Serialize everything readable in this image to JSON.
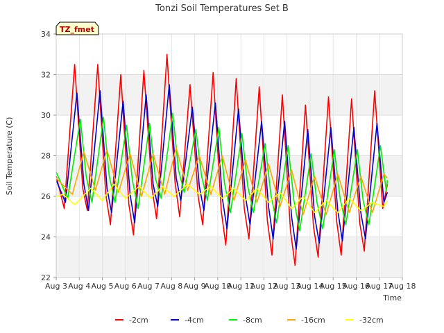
{
  "chart_data": {
    "type": "line",
    "title": "Tonzi Soil Temperatures Set B",
    "xlabel": "Time",
    "ylabel": "Soil Temperature (C)",
    "annotation": "TZ_fmet",
    "xlim": [
      3,
      18
    ],
    "ylim": [
      22,
      34
    ],
    "x_ticks": [
      3,
      4,
      5,
      6,
      7,
      8,
      9,
      10,
      11,
      12,
      13,
      14,
      15,
      16,
      17,
      18
    ],
    "x_tick_labels": [
      "Aug 3",
      "Aug 4",
      "Aug 5",
      "Aug 6",
      "Aug 7",
      "Aug 8",
      "Aug 9",
      "Aug 10",
      "Aug 11",
      "Aug 12",
      "Aug 13",
      "Aug 14",
      "Aug 15",
      "Aug 16",
      "Aug 17",
      "Aug 18"
    ],
    "y_ticks": [
      22,
      24,
      26,
      28,
      30,
      32,
      34
    ],
    "y_tick_labels": [
      "22",
      "24",
      "26",
      "28",
      "30",
      "32",
      "34"
    ],
    "grid": true,
    "legend_position": "bottom",
    "series": [
      {
        "name": "-2cm",
        "color": "#ff0000",
        "x": [
          3.0,
          3.35,
          3.8,
          4.15,
          4.35,
          4.8,
          5.15,
          5.35,
          5.8,
          6.15,
          6.35,
          6.8,
          7.15,
          7.35,
          7.8,
          8.15,
          8.35,
          8.8,
          9.15,
          9.35,
          9.8,
          10.15,
          10.35,
          10.8,
          11.15,
          11.35,
          11.8,
          12.15,
          12.35,
          12.8,
          13.15,
          13.35,
          13.8,
          14.15,
          14.35,
          14.8,
          15.15,
          15.35,
          15.8,
          16.15,
          16.35,
          16.8,
          17.15,
          17.35
        ],
        "y": [
          27.0,
          25.4,
          32.5,
          26.4,
          25.3,
          32.5,
          26.1,
          24.6,
          32.0,
          25.6,
          24.1,
          32.2,
          26.4,
          24.9,
          33.0,
          26.7,
          25.0,
          31.5,
          26.0,
          24.6,
          32.1,
          25.3,
          23.6,
          31.8,
          25.4,
          23.9,
          31.4,
          24.8,
          23.1,
          31.0,
          24.3,
          22.6,
          30.5,
          24.5,
          23.0,
          30.9,
          24.8,
          23.1,
          30.8,
          24.7,
          23.3,
          31.2,
          25.4,
          26.6
        ]
      },
      {
        "name": "-4cm",
        "color": "#0000cc",
        "x": [
          3.0,
          3.4,
          3.9,
          4.2,
          4.4,
          4.9,
          5.2,
          5.4,
          5.9,
          6.2,
          6.4,
          6.9,
          7.2,
          7.4,
          7.9,
          8.2,
          8.4,
          8.9,
          9.2,
          9.4,
          9.9,
          10.2,
          10.4,
          10.9,
          11.2,
          11.4,
          11.9,
          12.2,
          12.4,
          12.9,
          13.2,
          13.4,
          13.9,
          14.2,
          14.4,
          14.9,
          15.2,
          15.4,
          15.9,
          16.2,
          16.4,
          16.9,
          17.2,
          17.35
        ],
        "y": [
          26.8,
          25.7,
          31.1,
          26.6,
          25.3,
          31.2,
          26.4,
          25.2,
          30.7,
          26.1,
          24.7,
          31.0,
          26.6,
          25.5,
          31.5,
          26.9,
          25.8,
          30.4,
          26.5,
          25.3,
          30.6,
          25.9,
          24.4,
          30.3,
          26.0,
          24.6,
          29.7,
          25.5,
          23.9,
          29.7,
          25.0,
          23.4,
          29.3,
          25.0,
          23.7,
          29.4,
          25.3,
          23.8,
          29.4,
          25.2,
          23.9,
          29.6,
          25.7,
          26.2
        ]
      },
      {
        "name": "-8cm",
        "color": "#00ee00",
        "x": [
          3.0,
          3.5,
          4.05,
          4.3,
          4.55,
          5.05,
          5.3,
          5.55,
          6.05,
          6.3,
          6.55,
          7.05,
          7.3,
          7.55,
          8.05,
          8.3,
          8.55,
          9.05,
          9.3,
          9.55,
          10.05,
          10.3,
          10.55,
          11.05,
          11.3,
          11.55,
          12.05,
          12.3,
          12.55,
          13.05,
          13.3,
          13.55,
          14.05,
          14.3,
          14.55,
          15.05,
          15.3,
          15.55,
          16.05,
          16.3,
          16.55,
          17.05,
          17.3,
          17.35
        ],
        "y": [
          27.2,
          25.9,
          29.8,
          27.0,
          25.7,
          29.9,
          27.0,
          25.7,
          29.5,
          26.8,
          25.4,
          29.6,
          26.9,
          25.9,
          30.1,
          27.3,
          26.2,
          29.3,
          27.0,
          25.8,
          29.4,
          26.6,
          25.2,
          29.1,
          26.5,
          25.2,
          28.6,
          26.1,
          24.7,
          28.5,
          25.8,
          24.3,
          28.1,
          25.7,
          24.4,
          28.3,
          25.9,
          24.6,
          28.3,
          25.8,
          24.6,
          28.5,
          26.3,
          26.8
        ]
      },
      {
        "name": "-16cm",
        "color": "#ffa500",
        "x": [
          3.0,
          3.7,
          4.2,
          4.7,
          5.2,
          5.7,
          6.2,
          6.7,
          7.2,
          7.7,
          8.2,
          8.7,
          9.2,
          9.7,
          10.2,
          10.7,
          11.2,
          11.7,
          12.2,
          12.7,
          13.2,
          13.7,
          14.2,
          14.7,
          15.2,
          15.7,
          16.2,
          16.7,
          17.2,
          17.35
        ],
        "y": [
          26.9,
          26.1,
          28.2,
          26.3,
          28.3,
          26.2,
          28.1,
          26.0,
          28.1,
          26.1,
          28.4,
          26.3,
          28.0,
          26.1,
          28.0,
          25.8,
          27.8,
          25.7,
          27.6,
          25.5,
          27.3,
          25.1,
          27.0,
          25.1,
          27.1,
          25.2,
          27.0,
          25.2,
          27.1,
          26.9
        ]
      },
      {
        "name": "-32cm",
        "color": "#ffff00",
        "x": [
          3.0,
          3.3,
          3.8,
          4.5,
          5.0,
          5.5,
          6.0,
          6.6,
          7.1,
          7.6,
          8.1,
          8.7,
          9.2,
          9.7,
          10.2,
          10.7,
          11.2,
          11.7,
          12.2,
          12.7,
          13.2,
          13.7,
          14.2,
          14.7,
          15.2,
          15.7,
          16.2,
          16.7,
          17.2,
          17.35
        ],
        "y": [
          26.0,
          26.1,
          25.6,
          26.4,
          25.8,
          26.6,
          25.9,
          26.5,
          25.9,
          26.5,
          26.0,
          26.6,
          26.1,
          26.5,
          25.9,
          26.4,
          25.8,
          26.4,
          25.7,
          26.2,
          25.4,
          26.0,
          25.2,
          25.8,
          25.2,
          25.9,
          25.3,
          25.7,
          25.5,
          25.8
        ]
      }
    ]
  }
}
